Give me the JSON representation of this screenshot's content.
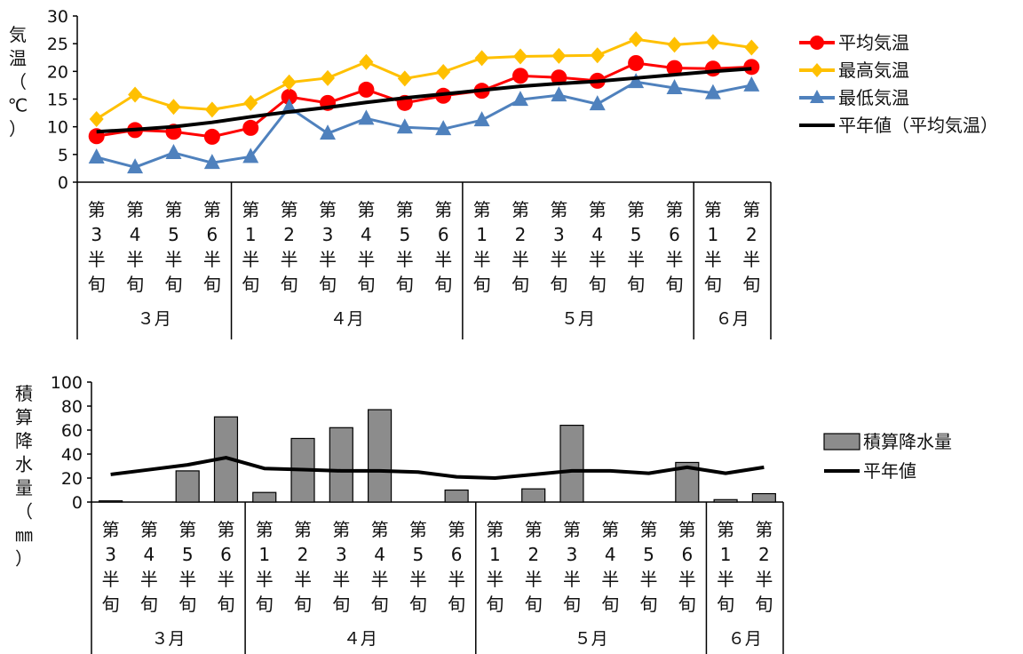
{
  "chart_data": [
    {
      "type": "line",
      "ylabel": "気温（℃）",
      "ylim": [
        0,
        30
      ],
      "yticks": [
        0,
        5,
        10,
        15,
        20,
        25,
        30
      ],
      "grid": false,
      "legend_position": "right",
      "categories": [
        "第3半旬",
        "第4半旬",
        "第5半旬",
        "第6半旬",
        "第1半旬",
        "第2半旬",
        "第3半旬",
        "第4半旬",
        "第5半旬",
        "第6半旬",
        "第1半旬",
        "第2半旬",
        "第3半旬",
        "第4半旬",
        "第5半旬",
        "第6半旬",
        "第1半旬",
        "第2半旬"
      ],
      "category_labels": [
        "第3半旬",
        "第4半旬",
        "第5半旬",
        "第6半旬",
        "第1半旬",
        "第2半旬",
        "第3半旬",
        "第4半旬",
        "第5半旬",
        "第6半旬",
        "第1半旬",
        "第2半旬",
        "第3半旬",
        "第4半旬",
        "第5半旬",
        "第6半旬",
        "第1半旬",
        "第2半旬"
      ],
      "months": [
        {
          "label": "３月",
          "count": 4
        },
        {
          "label": "４月",
          "count": 6
        },
        {
          "label": "５月",
          "count": 6
        },
        {
          "label": "６月",
          "count": 2
        }
      ],
      "series": [
        {
          "name": "平均気温",
          "color": "#ff0000",
          "marker": "circle",
          "values": [
            8.3,
            9.4,
            9.1,
            8.2,
            9.8,
            15.4,
            14.3,
            16.7,
            14.3,
            15.6,
            16.5,
            19.2,
            18.9,
            18.3,
            21.5,
            20.6,
            20.5,
            20.8
          ]
        },
        {
          "name": "最高気温",
          "color": "#ffc000",
          "marker": "diamond",
          "values": [
            11.4,
            15.8,
            13.6,
            13.1,
            14.3,
            18.0,
            18.8,
            21.7,
            18.7,
            19.9,
            22.4,
            22.7,
            22.8,
            22.9,
            25.8,
            24.8,
            25.3,
            24.3
          ]
        },
        {
          "name": "最低気温",
          "color": "#4f81bd",
          "marker": "triangle",
          "values": [
            4.5,
            2.7,
            5.3,
            3.5,
            4.6,
            13.5,
            8.8,
            11.5,
            9.9,
            9.6,
            11.2,
            14.9,
            15.7,
            14.1,
            18.1,
            17.0,
            16.1,
            17.5
          ]
        },
        {
          "name": "平年値（平均気温）",
          "color": "#000000",
          "marker": "none",
          "values": [
            9.1,
            9.5,
            10.0,
            10.8,
            11.8,
            12.7,
            13.5,
            14.4,
            15.2,
            15.9,
            16.6,
            17.3,
            17.8,
            18.2,
            18.8,
            19.4,
            20.0,
            20.5
          ]
        }
      ]
    },
    {
      "type": "bar",
      "ylabel": "積算降水量（㎜）",
      "ylim": [
        0,
        100
      ],
      "yticks": [
        0,
        20,
        40,
        60,
        80,
        100
      ],
      "grid": false,
      "legend_position": "right",
      "categories": [
        "第3半旬",
        "第4半旬",
        "第5半旬",
        "第6半旬",
        "第1半旬",
        "第2半旬",
        "第3半旬",
        "第4半旬",
        "第5半旬",
        "第6半旬",
        "第1半旬",
        "第2半旬",
        "第3半旬",
        "第4半旬",
        "第5半旬",
        "第6半旬",
        "第1半旬",
        "第2半旬"
      ],
      "category_labels": [
        "第3半旬",
        "第4半旬",
        "第5半旬",
        "第6半旬",
        "第1半旬",
        "第2半旬",
        "第3半旬",
        "第4半旬",
        "第5半旬",
        "第6半旬",
        "第1半旬",
        "第2半旬",
        "第3半旬",
        "第4半旬",
        "第5半旬",
        "第6半旬",
        "第1半旬",
        "第2半旬"
      ],
      "months": [
        {
          "label": "３月",
          "count": 4
        },
        {
          "label": "４月",
          "count": 6
        },
        {
          "label": "５月",
          "count": 6
        },
        {
          "label": "６月",
          "count": 2
        }
      ],
      "series": [
        {
          "name": "積算降水量",
          "color": "#8c8c8c",
          "kind": "bar",
          "values": [
            1,
            0,
            26,
            71,
            8,
            53,
            62,
            77,
            0,
            10,
            0,
            11,
            64,
            0,
            0,
            33,
            2,
            7
          ]
        },
        {
          "name": "平年値",
          "color": "#000000",
          "kind": "line",
          "values": [
            23,
            27,
            31,
            37,
            28,
            27,
            26,
            26,
            25,
            21,
            20,
            23,
            26,
            26,
            24,
            29,
            24,
            29
          ]
        }
      ]
    }
  ]
}
